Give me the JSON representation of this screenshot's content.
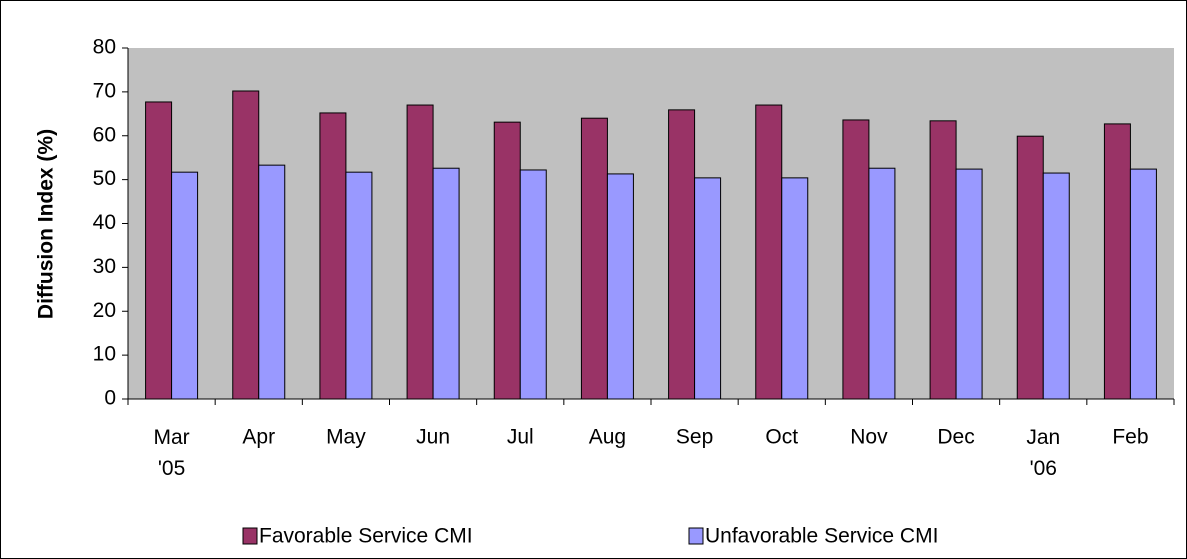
{
  "chart_data": {
    "type": "bar",
    "y_label": "Diffusion Index (%)",
    "categories": [
      "Mar '05",
      "Apr",
      "May",
      "Jun",
      "Jul",
      "Aug",
      "Sep",
      "Oct",
      "Nov",
      "Dec",
      "Jan '06",
      "Feb"
    ],
    "series": [
      {
        "name": "Favorable Service CMI",
        "color": "#993366",
        "values": [
          67.7,
          70.2,
          65.2,
          67.0,
          63.1,
          64.0,
          65.9,
          67.0,
          63.6,
          63.4,
          59.9,
          62.7
        ]
      },
      {
        "name": "Unfavorable Service CMI",
        "color": "#9999ff",
        "values": [
          51.7,
          53.3,
          51.7,
          52.6,
          52.2,
          51.3,
          50.4,
          50.4,
          52.6,
          52.4,
          51.5,
          52.4
        ]
      }
    ],
    "ylim": [
      0,
      80
    ],
    "yticks": [
      0,
      10,
      20,
      30,
      40,
      50,
      60,
      70,
      80
    ],
    "plot_background": "#c0c0c0",
    "legend": "bottom"
  }
}
